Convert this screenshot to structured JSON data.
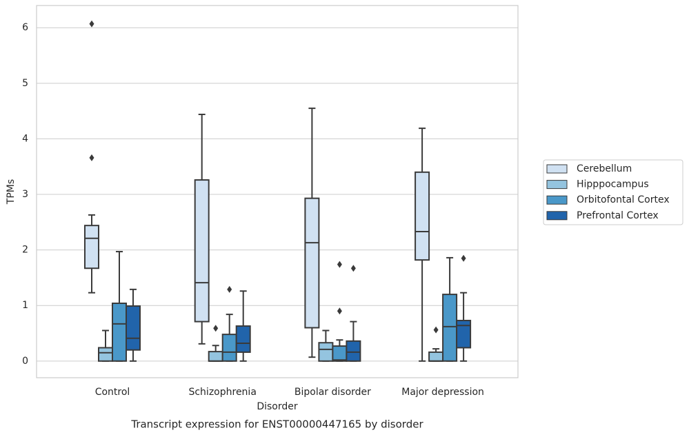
{
  "chart_data": {
    "type": "box",
    "title": "Transcript expression for ENST00000447165 by disorder",
    "x_label": "Disorder",
    "y_label": "TPMs",
    "categories": [
      "Control",
      "Schizophrenia",
      "Bipolar disorder",
      "Major depression"
    ],
    "ylim": [
      -0.3,
      6.4
    ],
    "yticks": [
      0,
      1,
      2,
      3,
      4,
      5,
      6
    ],
    "grid": true,
    "legend": "right",
    "series": [
      {
        "name": "Cerebellum",
        "color": "#d0e1f2",
        "boxes": [
          {
            "low": 1.23,
            "q1": 1.67,
            "median": 2.21,
            "q3": 2.44,
            "high": 2.63,
            "outliers": [
              6.07,
              3.66
            ]
          },
          {
            "low": 0.31,
            "q1": 0.71,
            "median": 1.41,
            "q3": 3.26,
            "high": 4.44
          },
          {
            "low": 0.07,
            "q1": 0.6,
            "median": 2.13,
            "q3": 2.93,
            "high": 4.55
          },
          {
            "low": 0,
            "q1": 1.82,
            "median": 2.33,
            "q3": 3.4,
            "high": 4.19
          }
        ]
      },
      {
        "name": "Hipppocampus",
        "color": "#94c4df",
        "boxes": [
          {
            "low": 0,
            "q1": 0,
            "median": 0.15,
            "q3": 0.24,
            "high": 0.55
          },
          {
            "low": 0,
            "q1": 0,
            "median": 0,
            "q3": 0.17,
            "high": 0.28,
            "outliers": [
              0.59
            ]
          },
          {
            "low": 0,
            "q1": 0,
            "median": 0.21,
            "q3": 0.33,
            "high": 0.55
          },
          {
            "low": 0,
            "q1": 0,
            "median": 0,
            "q3": 0.16,
            "high": 0.22,
            "outliers": [
              0.56
            ]
          }
        ]
      },
      {
        "name": "Orbitofontal Cortex",
        "color": "#4a98c9",
        "boxes": [
          {
            "low": 0,
            "q1": 0,
            "median": 0.67,
            "q3": 1.04,
            "high": 1.97
          },
          {
            "low": 0,
            "q1": 0,
            "median": 0.16,
            "q3": 0.48,
            "high": 0.84,
            "outliers": [
              1.29
            ]
          },
          {
            "low": 0,
            "q1": 0,
            "median": 0.02,
            "q3": 0.27,
            "high": 0.38,
            "outliers": [
              1.74,
              0.9
            ]
          },
          {
            "low": 0,
            "q1": 0,
            "median": 0.62,
            "q3": 1.2,
            "high": 1.86
          }
        ]
      },
      {
        "name": "Prefrontal Cortex",
        "color": "#2164ab",
        "boxes": [
          {
            "low": 0,
            "q1": 0.2,
            "median": 0.41,
            "q3": 0.99,
            "high": 1.29
          },
          {
            "low": 0,
            "q1": 0.16,
            "median": 0.32,
            "q3": 0.63,
            "high": 1.26
          },
          {
            "low": 0,
            "q1": 0,
            "median": 0.16,
            "q3": 0.36,
            "high": 0.71,
            "outliers": [
              1.67
            ]
          },
          {
            "low": 0,
            "q1": 0.24,
            "median": 0.64,
            "q3": 0.73,
            "high": 1.23,
            "outliers": [
              1.85
            ]
          }
        ]
      }
    ]
  }
}
